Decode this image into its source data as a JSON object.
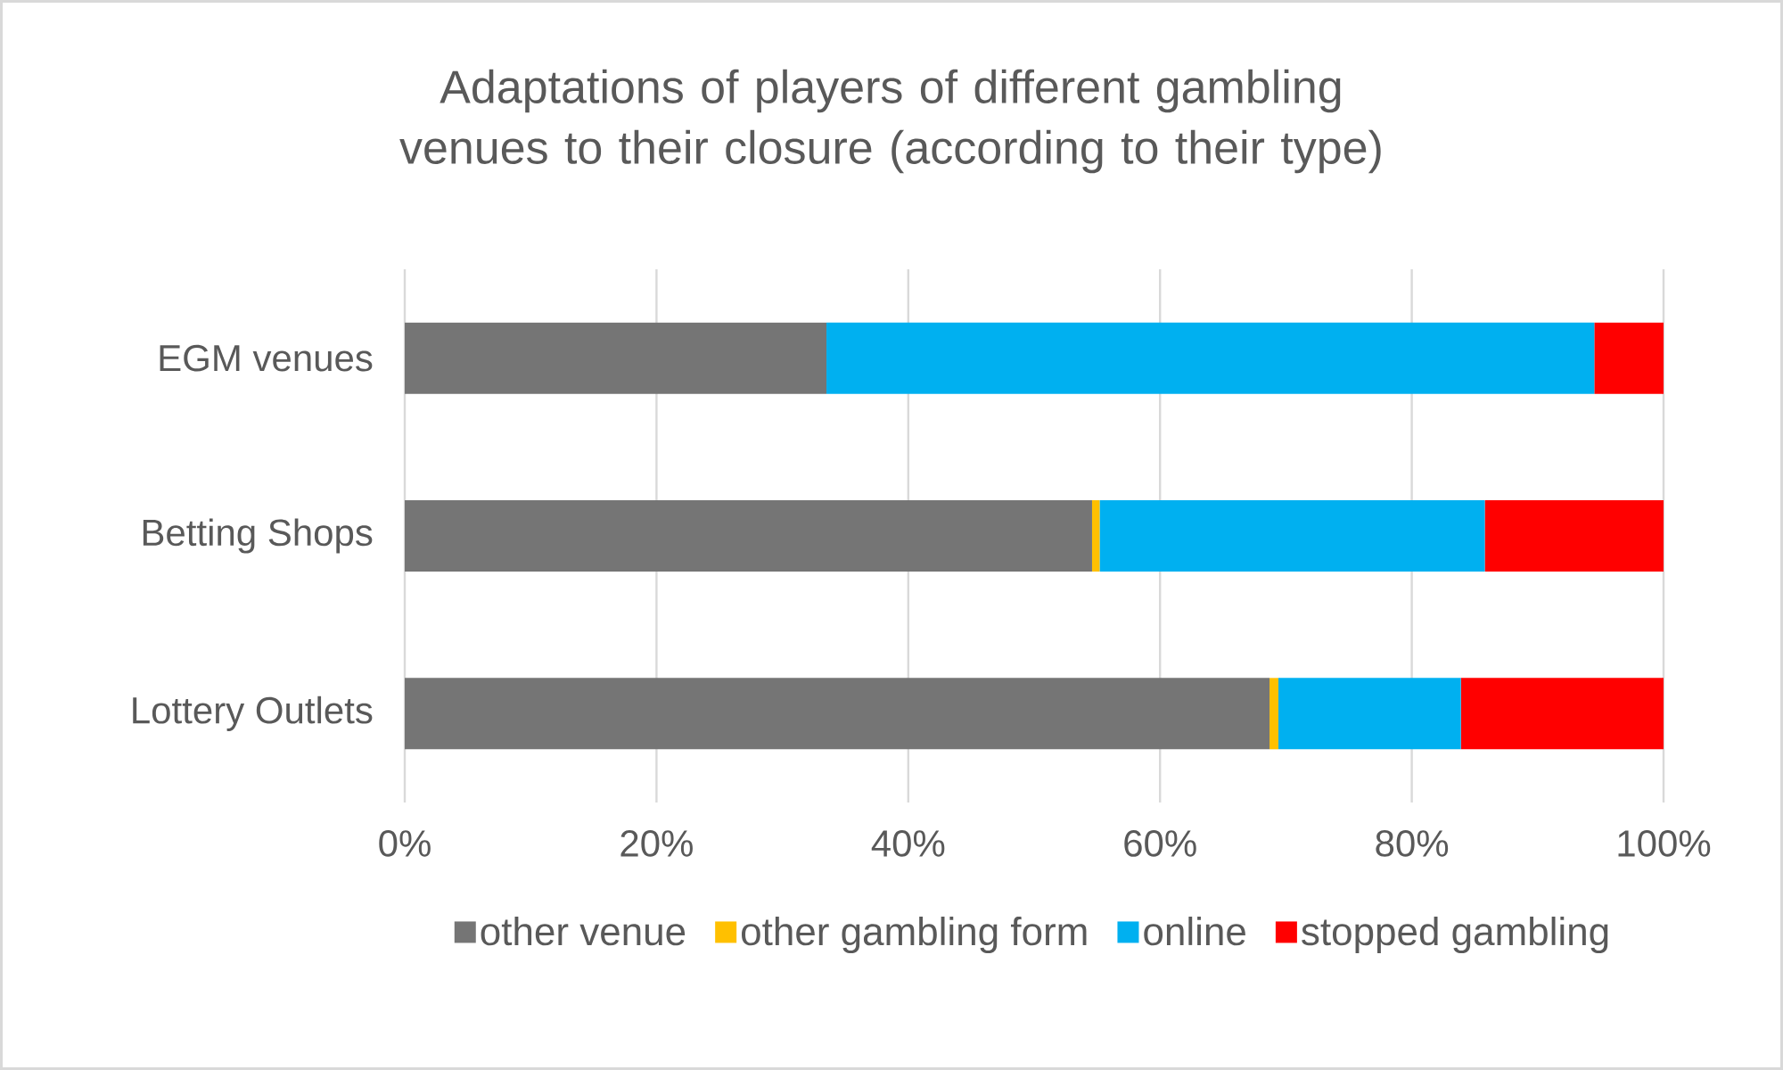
{
  "chart_data": {
    "type": "bar",
    "orientation": "horizontal",
    "stacked": true,
    "title": "Adaptations of players of different gambling venues to their closure (according to their type)",
    "categories": [
      "EGM venues",
      "Betting Shops",
      "Lottery Outlets"
    ],
    "series": [
      {
        "name": "other venue",
        "color": "#757575",
        "values": [
          33.5,
          54.6,
          68.7
        ]
      },
      {
        "name": "other gambling form",
        "color": "#ffc000",
        "values": [
          0,
          0.6,
          0.7
        ]
      },
      {
        "name": "online",
        "color": "#00b0f0",
        "values": [
          61.0,
          30.6,
          14.5
        ]
      },
      {
        "name": "stopped gambling",
        "color": "#ff0000",
        "values": [
          5.5,
          14.2,
          16.1
        ]
      }
    ],
    "xlim": [
      0,
      100
    ],
    "xticks": [
      {
        "value": 0,
        "label": "0%"
      },
      {
        "value": 20,
        "label": "20%"
      },
      {
        "value": 40,
        "label": "40%"
      },
      {
        "value": 60,
        "label": "60%"
      },
      {
        "value": 80,
        "label": "80%"
      },
      {
        "value": 100,
        "label": "100%"
      }
    ],
    "grid": "x",
    "legend": "bottom"
  }
}
